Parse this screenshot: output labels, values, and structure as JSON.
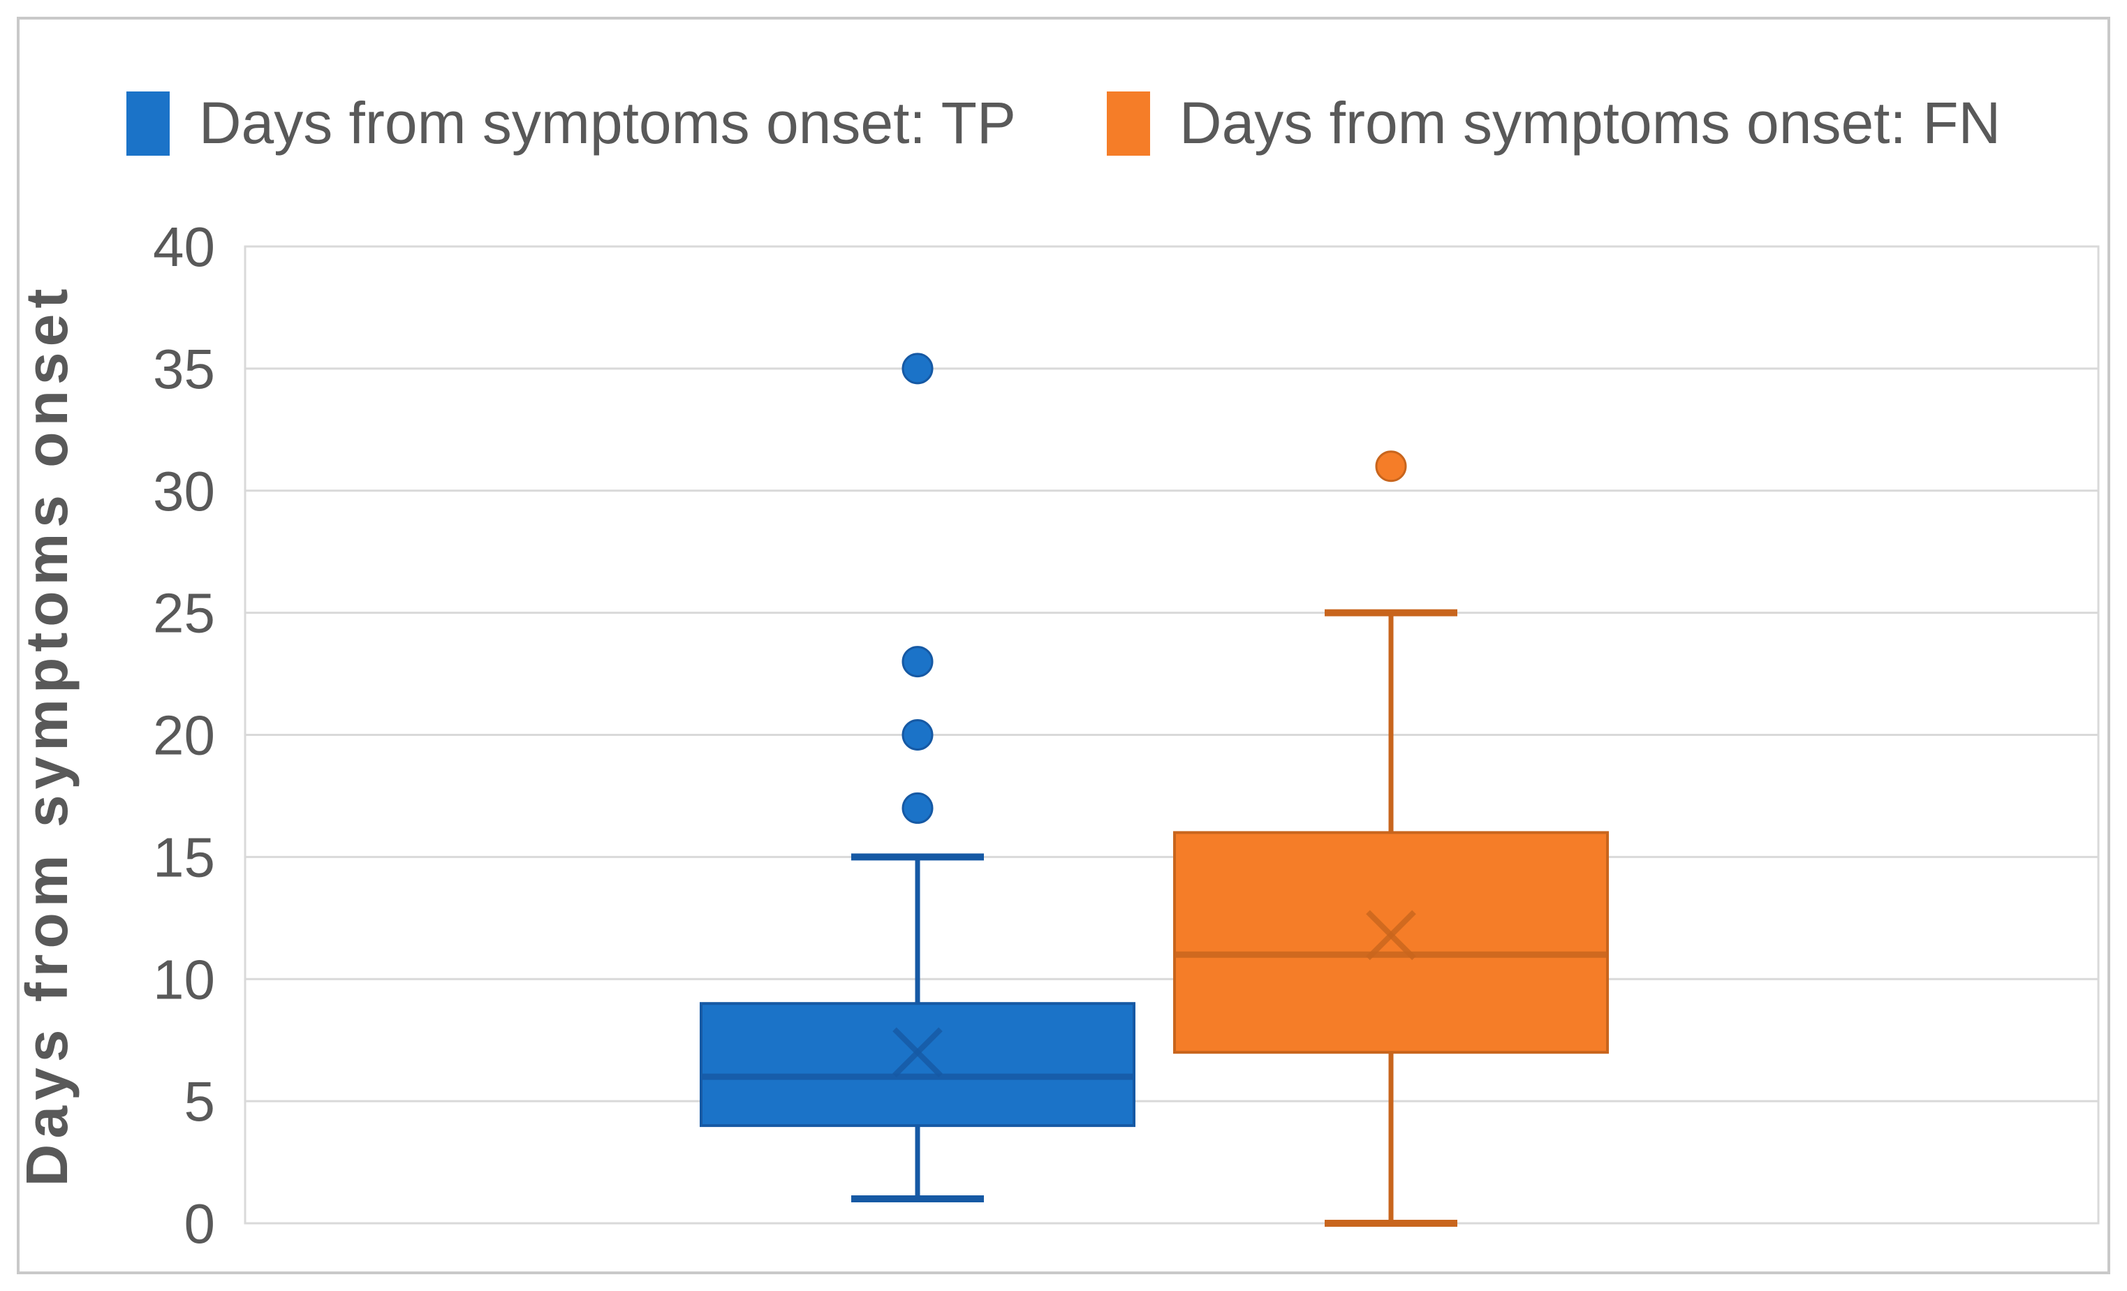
{
  "figure": {
    "background": "#FFFFFF",
    "border_color": "#C9C9C9",
    "text_color": "#595959",
    "grid_color": "#D9D9D9"
  },
  "legend": {
    "items": [
      {
        "label": "Days from symptoms onset: TP",
        "color": "#1B73C8"
      },
      {
        "label": "Days from symptoms onset: FN",
        "color": "#F57D28"
      }
    ]
  },
  "y_axis": {
    "title": "Days from symptoms onset",
    "tick_labels": [
      "0",
      "5",
      "10",
      "15",
      "20",
      "25",
      "30",
      "35",
      "40"
    ]
  },
  "chart_data": {
    "type": "boxplot",
    "orientation": "vertical",
    "title": "",
    "xlabel": "",
    "ylabel": "Days from symptoms onset",
    "ylim": [
      0,
      40
    ],
    "yticks": [
      0,
      5,
      10,
      15,
      20,
      25,
      30,
      35,
      40
    ],
    "grid": true,
    "legend_position": "top",
    "series": [
      {
        "name": "Days from symptoms onset: TP",
        "color": "#1B73C8",
        "line_color": "#1659A4",
        "q1": 4,
        "median": 6,
        "q3": 9,
        "whisker_low": 1,
        "whisker_high": 15,
        "mean": 7,
        "outliers": [
          17,
          20,
          23,
          35
        ]
      },
      {
        "name": "Days from symptoms onset: FN",
        "color": "#F57D28",
        "line_color": "#C8651D",
        "q1": 7,
        "median": 11,
        "q3": 16,
        "whisker_low": 0,
        "whisker_high": 25,
        "mean": 11.8,
        "outliers": [
          31
        ]
      }
    ]
  }
}
